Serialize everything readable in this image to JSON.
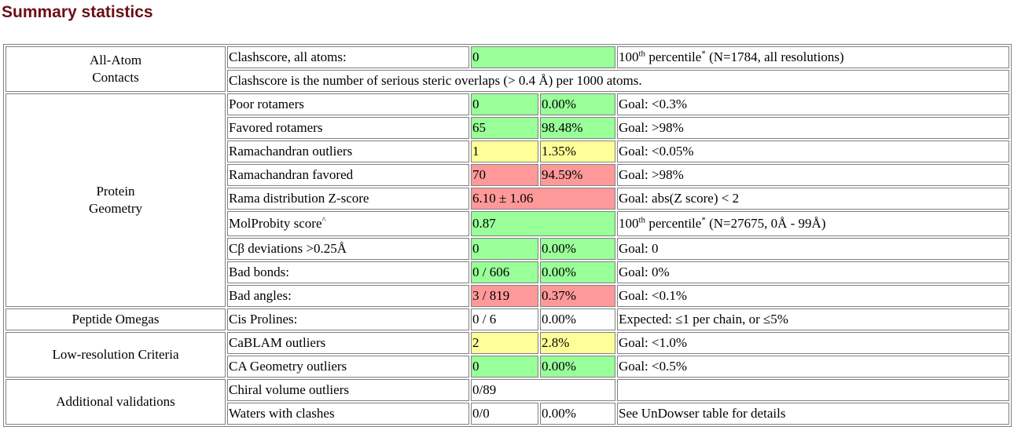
{
  "title": "Summary statistics",
  "colors": {
    "good": "#99ff99",
    "warn": "#ffff99",
    "bad": "#ff9999",
    "title": "#6b0f14"
  },
  "groups": {
    "contacts": "All-Atom Contacts",
    "protein": "Protein Geometry",
    "omegas": "Peptide Omegas",
    "lowres": "Low-resolution Criteria",
    "additional": "Additional validations"
  },
  "clashscore": {
    "label": "Clashscore, all atoms:",
    "value": "0",
    "pct_num": "100",
    "pct_sup": "th",
    "pct_word": " percentile",
    "pct_star": "*",
    "pct_rest": " (N=1784, all resolutions)",
    "note": "Clashscore is the number of serious steric overlaps (> 0.4 Å) per 1000 atoms."
  },
  "rows": {
    "poor_rot": {
      "label": "Poor rotamers",
      "value": "0",
      "pct": "0.00%",
      "goal": "Goal: <0.3%"
    },
    "fav_rot": {
      "label": "Favored rotamers",
      "value": "65",
      "pct": "98.48%",
      "goal": "Goal: >98%"
    },
    "rama_out": {
      "label": "Ramachandran outliers",
      "value": "1",
      "pct": "1.35%",
      "goal": "Goal: <0.05%"
    },
    "rama_fav": {
      "label": "Ramachandran favored",
      "value": "70",
      "pct": "94.59%",
      "goal": "Goal: >98%"
    },
    "rama_z": {
      "label": "Rama distribution Z-score",
      "value": "6.10 ± 1.06",
      "goal": "Goal: abs(Z score) < 2"
    },
    "molprob": {
      "label": "MolProbity score",
      "label_sup": "^",
      "value": "0.87",
      "pct_num": "100",
      "pct_sup": "th",
      "pct_word": " percentile",
      "pct_star": "*",
      "pct_rest": " (N=27675, 0Å - 99Å)"
    },
    "cb_dev": {
      "label": "Cβ deviations >0.25Å",
      "value": "0",
      "pct": "0.00%",
      "goal": "Goal: 0"
    },
    "bad_bonds": {
      "label": "Bad bonds:",
      "value": "0 / 606",
      "pct": "0.00%",
      "goal": "Goal: 0%"
    },
    "bad_angles": {
      "label": "Bad angles:",
      "value": "3 / 819",
      "pct": "0.37%",
      "goal": "Goal: <0.1%"
    },
    "cis_pro": {
      "label": "Cis Prolines:",
      "value": "0 / 6",
      "pct": "0.00%",
      "goal": "Expected: ≤1 per chain, or ≤5%"
    },
    "cablam": {
      "label": "CaBLAM outliers",
      "value": "2",
      "pct": "2.8%",
      "goal": "Goal: <1.0%"
    },
    "ca_geo": {
      "label": "CA Geometry outliers",
      "value": "0",
      "pct": "0.00%",
      "goal": "Goal: <0.5%"
    },
    "chiral": {
      "label": "Chiral volume outliers",
      "value": "0/89",
      "goal": ""
    },
    "waters": {
      "label": "Waters with clashes",
      "value": "0/0",
      "pct": "0.00%",
      "goal": "See UnDowser table for details"
    }
  }
}
